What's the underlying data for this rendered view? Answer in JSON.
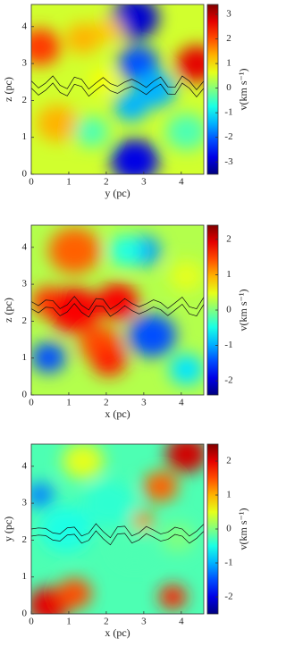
{
  "chart_data": [
    {
      "type": "heatmap",
      "colormap": "jet",
      "xlabel": "y (pc)",
      "ylabel": "z (pc)",
      "xlim": [
        0,
        4.6
      ],
      "ylim": [
        0,
        4.6
      ],
      "xticks": [
        0,
        1,
        2,
        3,
        4
      ],
      "yticks": [
        0,
        1,
        2,
        3,
        4
      ],
      "colorbar": {
        "label": "v(km s⁻¹)",
        "lim": [
          -3.5,
          3.4
        ],
        "ticks": [
          -3,
          -2,
          -1,
          0,
          1,
          2,
          3
        ]
      }
    },
    {
      "type": "heatmap",
      "colormap": "jet",
      "xlabel": "x (pc)",
      "ylabel": "z (pc)",
      "xlim": [
        0,
        4.6
      ],
      "ylim": [
        0,
        4.6
      ],
      "xticks": [
        0,
        1,
        2,
        3,
        4
      ],
      "yticks": [
        0,
        1,
        2,
        3,
        4
      ],
      "colorbar": {
        "label": "v(km s⁻¹)",
        "lim": [
          -2.4,
          2.4
        ],
        "ticks": [
          -2,
          -1,
          0,
          1,
          2
        ]
      }
    },
    {
      "type": "heatmap",
      "colormap": "jet",
      "xlabel": "x (pc)",
      "ylabel": "y (pc)",
      "xlim": [
        0,
        4.6
      ],
      "ylim": [
        0,
        4.6
      ],
      "xticks": [
        0,
        1,
        2,
        3,
        4
      ],
      "yticks": [
        0,
        1,
        2,
        3,
        4
      ],
      "colorbar": {
        "label": "v(km s⁻¹)",
        "lim": [
          -2.5,
          2.5
        ],
        "ticks": [
          -2,
          -1,
          0,
          1,
          2
        ]
      }
    }
  ]
}
